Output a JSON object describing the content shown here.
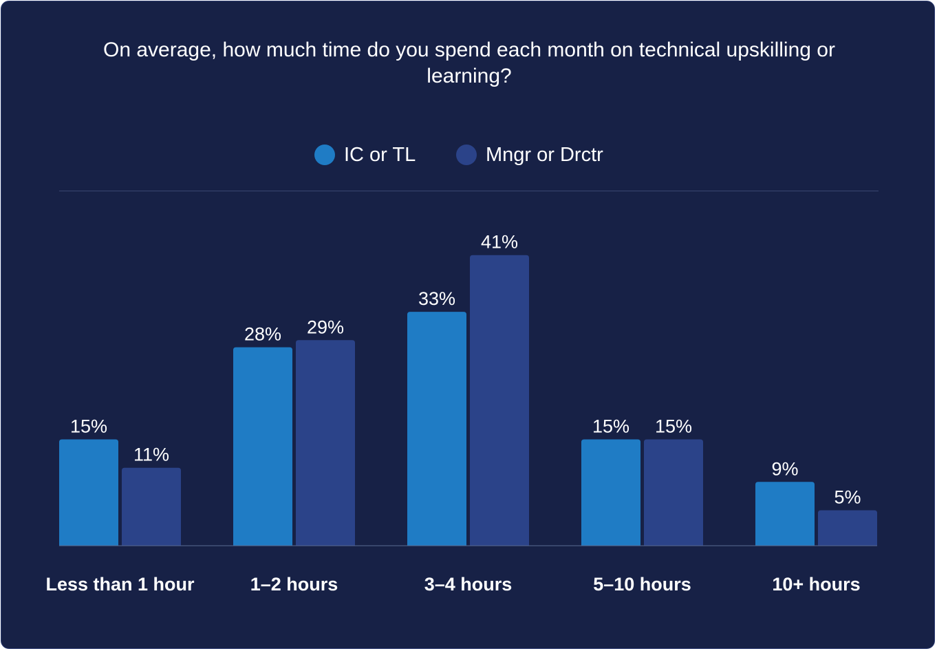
{
  "chart_data": {
    "type": "bar",
    "title": "On average, how much time do you spend each month on technical upskilling or learning?",
    "categories": [
      "Less than 1 hour",
      "1–2 hours",
      "3–4 hours",
      "5–10 hours",
      "10+ hours"
    ],
    "series": [
      {
        "name": "IC or TL",
        "values": [
          15,
          28,
          33,
          15,
          9
        ],
        "labels": [
          "15%",
          "28%",
          "33%",
          "15%",
          "9%"
        ],
        "color": "#1f7cc5"
      },
      {
        "name": "Mngr or Drctr",
        "values": [
          11,
          29,
          41,
          15,
          5
        ],
        "labels": [
          "11%",
          "29%",
          "41%",
          "15%",
          "5%"
        ],
        "color": "#2b4389"
      }
    ],
    "xlabel": "",
    "ylabel": "",
    "ylim": [
      0,
      41
    ],
    "legend": "top-center",
    "grid": false
  },
  "colors": {
    "background": "#172146",
    "text": "#ffffff",
    "divider": "#3a4670"
  }
}
